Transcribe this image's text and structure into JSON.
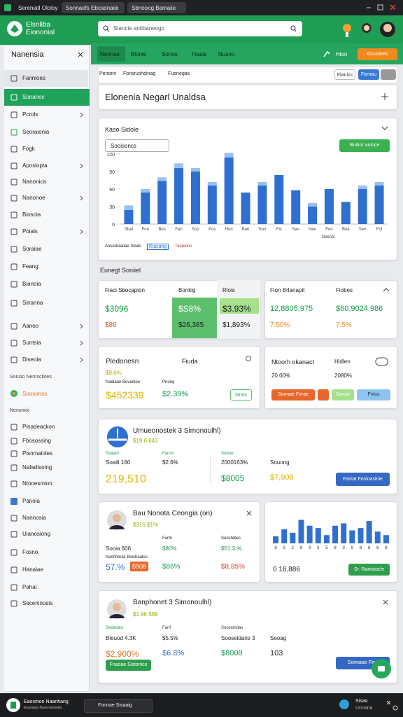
{
  "browser": {
    "tabs": [
      "Sereniatl Ololoy",
      "Sonnaefs Ebcaonaile",
      "Sbnooog Bamaiie"
    ]
  },
  "header": {
    "logo": "Elsnliba Eiononial",
    "search": "Stancie antibaneogo"
  },
  "sidebar": {
    "title": "Nanensia",
    "items": [
      "Fannioes",
      "Sonanoc",
      "Pcrols",
      "Seoraionia",
      "Fogk",
      "Aposlopta",
      "Nanonica",
      "Nanonoe",
      "Biosoia",
      "Poials",
      "Soraiae",
      "Feang",
      "Bianoia",
      "Sinanna",
      "Aanoo",
      "Suntsia",
      "Diseoia"
    ],
    "section1": "Sonsio Nernsclioes",
    "highlight": "Soosonss",
    "section2": "Nenonioi",
    "items2": [
      "Pinadeackon",
      "Fbosossing",
      "Pisnmaioles",
      "Nafadisoing",
      "Ntonesmion",
      "Panoia",
      "Nannosia",
      "Uianosiong",
      "Fosno",
      "Hanalae",
      "Pahal",
      "Seceninosis"
    ]
  },
  "nav": {
    "tabs": [
      "Nonnae",
      "Bionie",
      "Sonos",
      "Fiaais",
      "Nusno"
    ],
    "link": "Hion",
    "button": "Gouslees"
  },
  "toolbar": {
    "items": [
      "Penonn",
      "Fonsrushdinag",
      "Fuonegas"
    ],
    "buttons": [
      "Flaniss",
      "Farnau"
    ]
  },
  "page_title": "Elonenia Negarl Unaldsa",
  "chart_card": {
    "title": "Kaso Sidole",
    "dropdown": "Sooisoncs",
    "button": "Ruitior anloce",
    "axis_note": "Dosnsl",
    "legend": [
      "Aosedsiadae Sdalo",
      "Kiasang",
      "Taopaloo"
    ]
  },
  "main_chart": {
    "type": "bar",
    "categories": [
      "Sbal",
      "Fon",
      "Bes",
      "Fan",
      "Soo",
      "Pos",
      "Hon",
      "Ban",
      "Son",
      "Fis",
      "Sao",
      "Nen",
      "Fon",
      "Boa",
      "Sen",
      "Fol"
    ],
    "series": [
      {
        "color": "#2f6fd0",
        "values": [
          24,
          54,
          74,
          96,
          90,
          66,
          114,
          54,
          66,
          84,
          58,
          30,
          60,
          38,
          60,
          66
        ]
      },
      {
        "color": "#9cc0ee",
        "values": [
          8,
          6,
          6,
          8,
          6,
          6,
          8,
          0,
          6,
          0,
          0,
          6,
          0,
          0,
          6,
          6
        ]
      }
    ],
    "ylim": [
      0,
      120
    ],
    "yticks": [
      0,
      30,
      60,
      90,
      120
    ],
    "grid": false
  },
  "section_heading": "Eunegt Soniiel",
  "kpi_left": {
    "headers": [
      "Fiaci Sbocapion",
      "Bonkig",
      "Rlois"
    ],
    "values": [
      "$3096",
      "$S8%",
      "$3.93%"
    ],
    "subs": [
      "$86",
      "$26,385",
      "$1,893%"
    ]
  },
  "kpi_right": {
    "headers": [
      "Fion Brlanapit",
      "Fiobes"
    ],
    "values": [
      "12,8805,975",
      "$60,9024,986"
    ],
    "subs": [
      "7.50%",
      "7.5%"
    ]
  },
  "card_a": {
    "title": "Pledonesn",
    "title2": "Fiuda",
    "line": "$9.6%",
    "labels": [
      "Naidaan Bevaoloe",
      "Pnong"
    ],
    "values": [
      "$452339",
      "$2.39%"
    ],
    "button": "Gnos"
  },
  "card_b": {
    "title": "Ntoorh okanact",
    "title2": "Hidlen",
    "values": [
      "20.00%",
      "2080%"
    ],
    "buttons": [
      "Sonnae Ferae",
      "Sonae",
      "Fnlos"
    ]
  },
  "card_c": {
    "title": "Umueonostek 3 Simonoulhl)",
    "line": "$19.0 843",
    "headers": [
      "Soaaol",
      "Fanos",
      "Sodoe"
    ],
    "row": [
      "Soaili 160",
      "$2.6%",
      "2000163%",
      "Souong"
    ],
    "values": [
      "219,510",
      "$8005",
      "$7,906"
    ],
    "button": "Faniat Fosloasinie"
  },
  "profile1": {
    "title": "Bau Nonota Ceongia (on)",
    "line": "$316 $1%",
    "headers": [
      "Fanb",
      "Sooshibes"
    ],
    "row": [
      "Sooia 606",
      "$80%",
      "$51.3.%"
    ],
    "note": "Noshfenas Bloshaalos",
    "values": [
      "57.%",
      "$908",
      "$86%",
      "$8,85%"
    ]
  },
  "mini_chart": {
    "type": "bar",
    "categories": [
      "8",
      "9",
      "2",
      "8",
      "9",
      "3",
      "5",
      "8",
      "3",
      "9",
      "8",
      "6",
      "6",
      "8"
    ],
    "values": [
      12,
      24,
      18,
      40,
      30,
      26,
      14,
      30,
      34,
      22,
      26,
      38,
      20,
      14
    ],
    "color": "#2f6fd0",
    "ylim": [
      0,
      50
    ],
    "total": "0 16,886",
    "button": "Sr. Ranistocle"
  },
  "profile2": {
    "title": "Banphonet 3 Simonoulhl)",
    "line": "$1.96 $89",
    "headers": [
      "Seoindes",
      "Fanf",
      "Sooseindas"
    ],
    "row": [
      "Bleuod 4.3K",
      "$5.5%",
      "Sooseidans 3",
      "Seoag"
    ],
    "values": [
      "$2,900%",
      "$6.8%",
      "$8008",
      "103"
    ],
    "buttons": [
      "Fnaoae Sistonice",
      "Sonnaae Ftes"
    ]
  },
  "footer": {
    "app": "Eaosmon Naanhang",
    "sub": "Eeanaaia Baxeneionelia",
    "button": "Fonnae Sisaaig",
    "right1": "Sisao",
    "right2": "Unnana"
  }
}
